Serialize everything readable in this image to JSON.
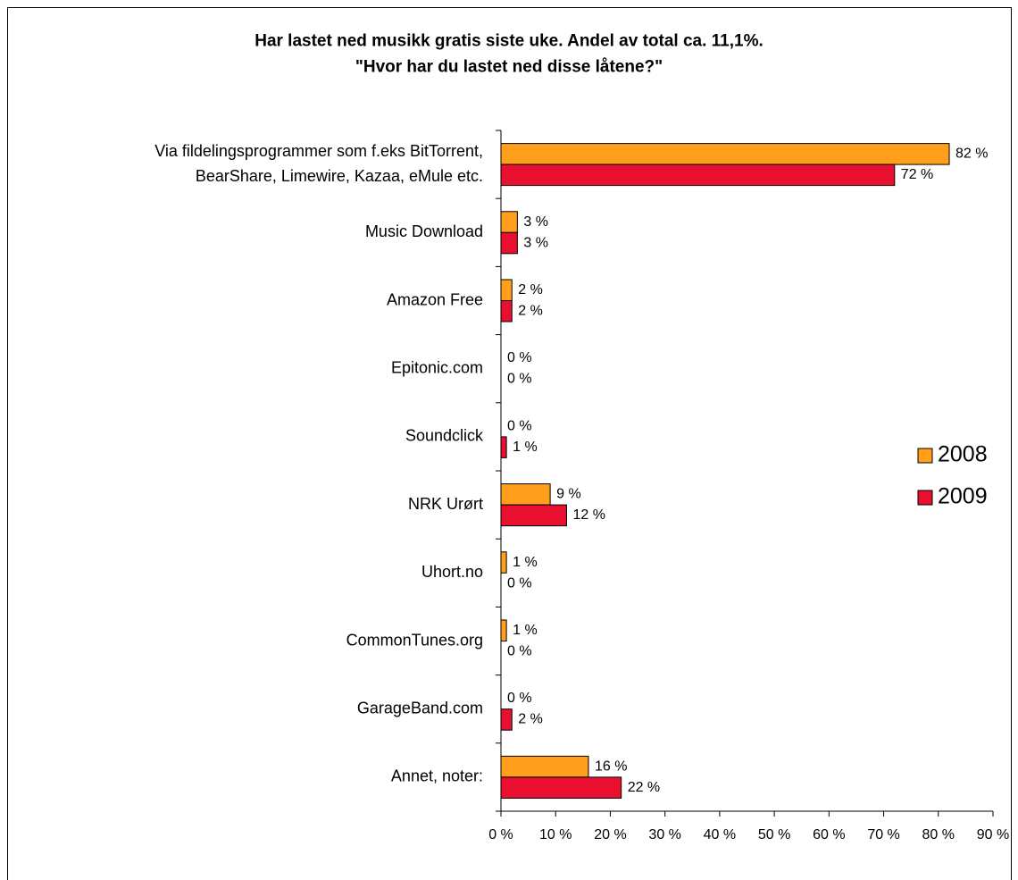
{
  "chart_data": {
    "type": "barh",
    "title": "Har lastet ned musikk gratis siste uke. Andel av total ca. 11,1%.\n\"Hvor har du lastet ned disse låtene?\"",
    "categories": [
      "Via fildelingsprogrammer som f.eks BitTorrent,\nBearShare, Limewire, Kazaa, eMule etc.",
      "Music Download",
      "Amazon Free",
      "Epitonic.com",
      "Soundclick",
      "NRK Urørt",
      "Uhort.no",
      "CommonTunes.org",
      "GarageBand.com",
      "Annet, noter:"
    ],
    "series": [
      {
        "name": "2008",
        "color": "#ff9f1c",
        "values": [
          82,
          3,
          2,
          0,
          0,
          9,
          1,
          1,
          0,
          16
        ],
        "value_labels": [
          "82 %",
          "3 %",
          "2 %",
          "0 %",
          "0 %",
          "9 %",
          "1 %",
          "1 %",
          "0 %",
          "16 %"
        ]
      },
      {
        "name": "2009",
        "color": "#e8102e",
        "values": [
          72,
          3,
          2,
          0,
          1,
          12,
          0,
          0,
          2,
          22
        ],
        "value_labels": [
          "72 %",
          "3 %",
          "2 %",
          "0 %",
          "1 %",
          "12 %",
          "0 %",
          "0 %",
          "2 %",
          "22 %"
        ]
      }
    ],
    "xlim": [
      0,
      90
    ],
    "xticks": [
      {
        "value": 0,
        "label": "0 %"
      },
      {
        "value": 10,
        "label": "10 %"
      },
      {
        "value": 20,
        "label": "20 %"
      },
      {
        "value": 30,
        "label": "30 %"
      },
      {
        "value": 40,
        "label": "40 %"
      },
      {
        "value": 50,
        "label": "50 %"
      },
      {
        "value": 60,
        "label": "60 %"
      },
      {
        "value": 70,
        "label": "70 %"
      },
      {
        "value": 80,
        "label": "80 %"
      },
      {
        "value": 90,
        "label": "90 %"
      }
    ],
    "legend": "right"
  }
}
